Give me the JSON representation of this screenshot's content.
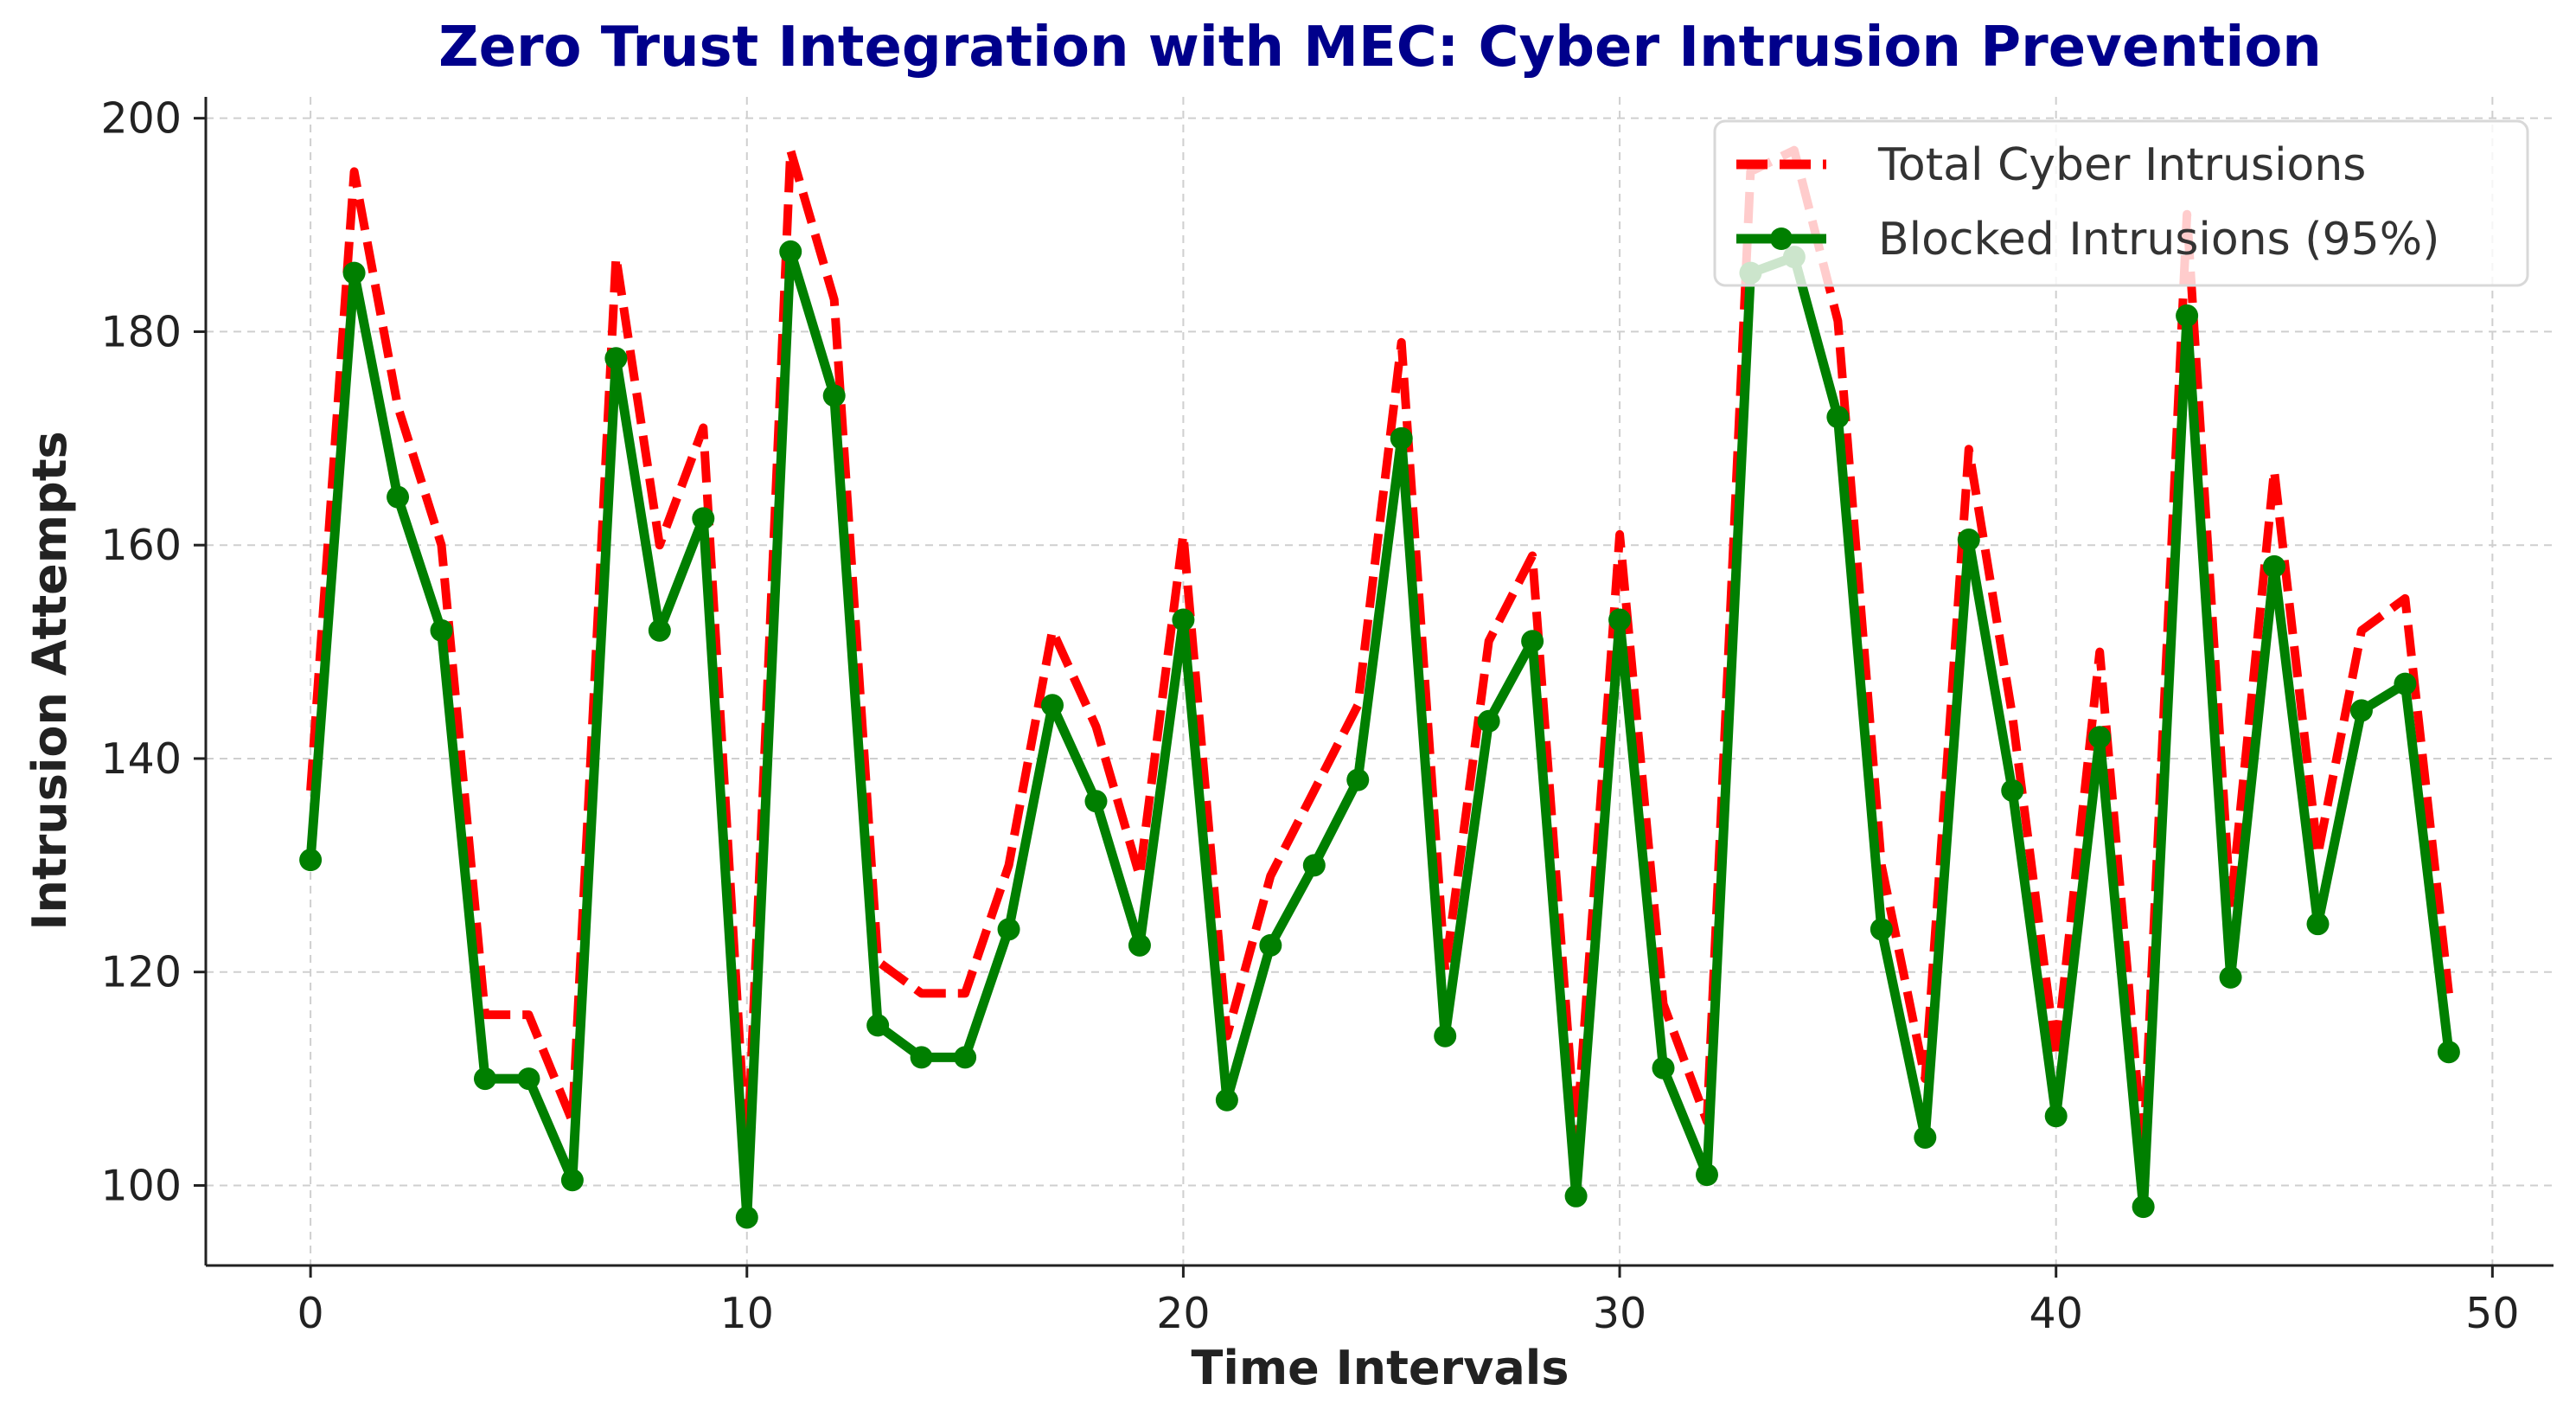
{
  "chart_data": {
    "type": "line",
    "title": "Zero Trust Integration with MEC: Cyber Intrusion Prevention",
    "xlabel": "Time Intervals",
    "ylabel": "Intrusion Attempts",
    "xlim": [
      -2.4,
      51.4
    ],
    "ylim": [
      92.5,
      202
    ],
    "xticks": [
      0,
      10,
      20,
      30,
      40,
      50
    ],
    "yticks": [
      100,
      120,
      140,
      160,
      180,
      200
    ],
    "grid": true,
    "legend_position": "top-right",
    "x": [
      0,
      1,
      2,
      3,
      4,
      5,
      6,
      7,
      8,
      9,
      10,
      11,
      12,
      13,
      14,
      15,
      16,
      17,
      18,
      19,
      20,
      21,
      22,
      23,
      24,
      25,
      26,
      27,
      28,
      29,
      30,
      31,
      32,
      33,
      34,
      35,
      36,
      37,
      38,
      39,
      40,
      41,
      42,
      43,
      44,
      45,
      46,
      47,
      48,
      49
    ],
    "series": [
      {
        "name": "Total Cyber Intrusions",
        "color": "#ff0000",
        "style": "dashed",
        "values": [
          137,
          195,
          173,
          160,
          116,
          116,
          106,
          187,
          160,
          171,
          102,
          197,
          183,
          121,
          118,
          118,
          130,
          152,
          143,
          129,
          161,
          114,
          129,
          137,
          145,
          179,
          120,
          151,
          159,
          104,
          161,
          117,
          106,
          195,
          197,
          181,
          130,
          110,
          169,
          144,
          112,
          150,
          103,
          191,
          126,
          167,
          131,
          152,
          155,
          118
        ]
      },
      {
        "name": "Blocked Intrusions (95%)",
        "color": "#007f00",
        "style": "solid-markers",
        "values": [
          130.5,
          185.5,
          164.5,
          152,
          110,
          110,
          100.5,
          177.5,
          152,
          162.5,
          97,
          187.5,
          174,
          115,
          112,
          112,
          124,
          145,
          136,
          122.5,
          153,
          108,
          122.5,
          130,
          138,
          170,
          114,
          143.5,
          151,
          99,
          153,
          111,
          101,
          185.5,
          187,
          172,
          124,
          104.5,
          160.5,
          137,
          106.5,
          142,
          98,
          181.5,
          119.5,
          158,
          124.5,
          144.5,
          147,
          112.5
        ]
      }
    ]
  }
}
